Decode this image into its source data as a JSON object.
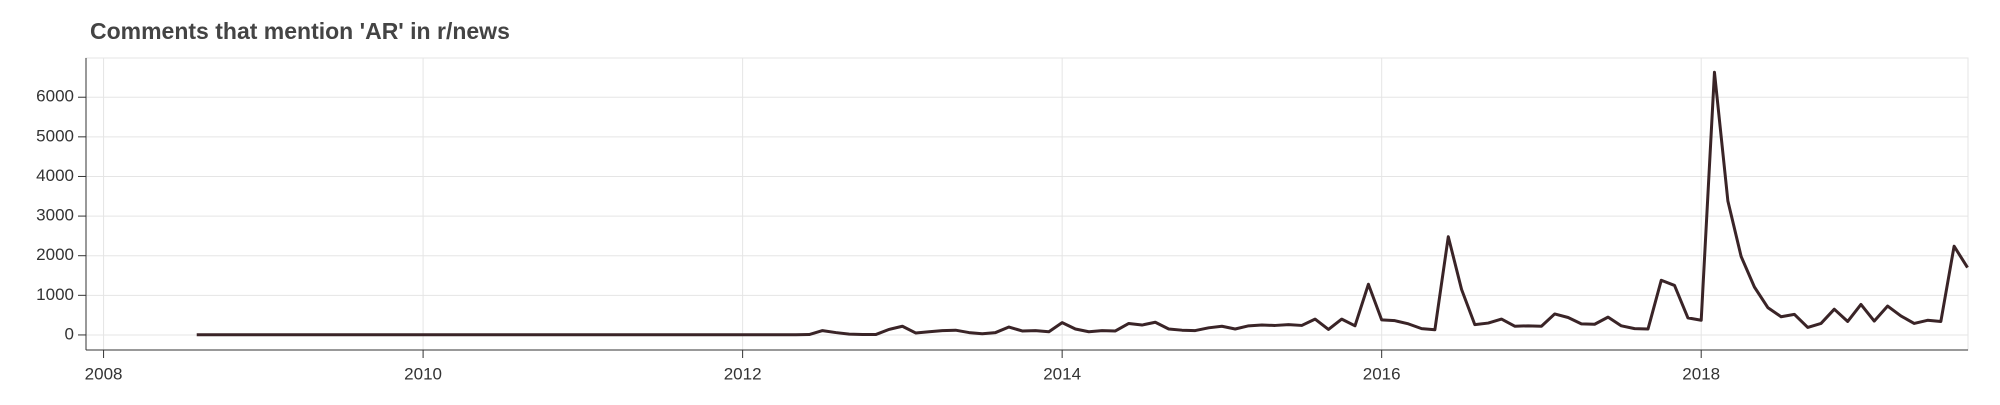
{
  "chart_data": {
    "type": "line",
    "title": "Comments that mention 'AR' in r/news",
    "x": [
      2008.583,
      2008.667,
      2008.75,
      2008.833,
      2008.917,
      2009,
      2009.083,
      2009.167,
      2009.25,
      2009.333,
      2009.417,
      2009.5,
      2009.583,
      2009.667,
      2009.75,
      2009.833,
      2009.917,
      2010,
      2010.083,
      2010.167,
      2010.25,
      2010.333,
      2010.417,
      2010.5,
      2010.583,
      2010.667,
      2010.75,
      2010.833,
      2010.917,
      2011,
      2011.083,
      2011.167,
      2011.25,
      2011.333,
      2011.417,
      2011.5,
      2011.583,
      2011.667,
      2011.75,
      2011.833,
      2011.917,
      2012,
      2012.083,
      2012.167,
      2012.25,
      2012.333,
      2012.417,
      2012.5,
      2012.583,
      2012.667,
      2012.75,
      2012.833,
      2012.917,
      2013,
      2013.083,
      2013.167,
      2013.25,
      2013.333,
      2013.417,
      2013.5,
      2013.583,
      2013.667,
      2013.75,
      2013.833,
      2013.917,
      2014,
      2014.083,
      2014.167,
      2014.25,
      2014.333,
      2014.417,
      2014.5,
      2014.583,
      2014.667,
      2014.75,
      2014.833,
      2014.917,
      2015,
      2015.083,
      2015.167,
      2015.25,
      2015.333,
      2015.417,
      2015.5,
      2015.583,
      2015.667,
      2015.75,
      2015.833,
      2015.917,
      2016,
      2016.083,
      2016.167,
      2016.25,
      2016.333,
      2016.417,
      2016.5,
      2016.583,
      2016.667,
      2016.75,
      2016.833,
      2016.917,
      2017,
      2017.083,
      2017.167,
      2017.25,
      2017.333,
      2017.417,
      2017.5,
      2017.583,
      2017.667,
      2017.75,
      2017.833,
      2017.917,
      2018,
      2018.083,
      2018.167,
      2018.25,
      2018.333,
      2018.417,
      2018.5,
      2018.583,
      2018.667,
      2018.75,
      2018.833,
      2018.917,
      2019,
      2019.083,
      2019.167,
      2019.25,
      2019.333,
      2019.417,
      2019.5,
      2019.583,
      2019.667
    ],
    "series": [
      {
        "color": "#3a2427",
        "values": [
          5,
          5,
          5,
          5,
          5,
          5,
          5,
          5,
          5,
          5,
          5,
          5,
          5,
          5,
          5,
          5,
          5,
          5,
          5,
          5,
          5,
          5,
          5,
          5,
          5,
          5,
          5,
          5,
          5,
          5,
          5,
          5,
          5,
          5,
          5,
          5,
          5,
          5,
          5,
          5,
          5,
          5,
          5,
          5,
          5,
          5,
          10,
          110,
          60,
          20,
          10,
          10,
          140,
          220,
          50,
          80,
          110,
          120,
          60,
          30,
          60,
          200,
          100,
          110,
          80,
          310,
          150,
          80,
          110,
          100,
          290,
          250,
          320,
          150,
          120,
          110,
          180,
          220,
          150,
          230,
          250,
          240,
          260,
          240,
          400,
          140,
          400,
          230,
          1280,
          380,
          360,
          280,
          160,
          130,
          2480,
          1150,
          260,
          300,
          400,
          220,
          230,
          220,
          530,
          440,
          280,
          270,
          450,
          230,
          160,
          150,
          1380,
          1250,
          430,
          370,
          6630,
          3380,
          1980,
          1210,
          690,
          460,
          520,
          190,
          290,
          650,
          340,
          770,
          350,
          730,
          480,
          290,
          370,
          340,
          2240,
          1700
        ]
      }
    ],
    "xlim": [
      2007.89,
      2019.67
    ],
    "xticks": [
      2008,
      2010,
      2012,
      2014,
      2016,
      2018
    ],
    "ylim": [
      -380,
      6990
    ],
    "yticks": [
      0,
      1000,
      2000,
      3000,
      4000,
      5000,
      6000
    ],
    "grid": true
  }
}
